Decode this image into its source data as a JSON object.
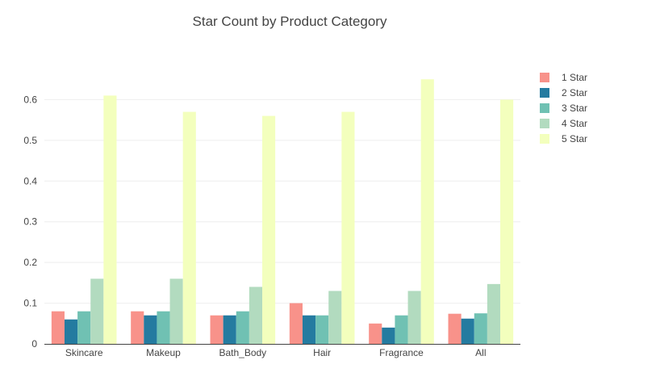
{
  "chart_data": {
    "type": "bar",
    "title": "Star Count by Product Category",
    "xlabel": "",
    "ylabel": "",
    "categories": [
      "Skincare",
      "Makeup",
      "Bath_Body",
      "Hair",
      "Fragrance",
      "All"
    ],
    "ylim": [
      0,
      0.7
    ],
    "yticks": [
      "0",
      "0.1",
      "0.2",
      "0.3",
      "0.4",
      "0.5",
      "0.6"
    ],
    "grid": true,
    "legend_position": "top-right",
    "series": [
      {
        "name": "1 Star",
        "color": "#f8928a",
        "values": [
          0.08,
          0.08,
          0.07,
          0.1,
          0.05,
          0.074
        ]
      },
      {
        "name": "2 Star",
        "color": "#247ba0",
        "values": [
          0.06,
          0.07,
          0.07,
          0.07,
          0.04,
          0.062
        ]
      },
      {
        "name": "3 Star",
        "color": "#70c1b3",
        "values": [
          0.08,
          0.08,
          0.08,
          0.07,
          0.07,
          0.075
        ]
      },
      {
        "name": "4 Star",
        "color": "#b2dbbf",
        "values": [
          0.16,
          0.16,
          0.14,
          0.13,
          0.13,
          0.147
        ]
      },
      {
        "name": "5 Star",
        "color": "#f3ffbd",
        "values": [
          0.61,
          0.57,
          0.56,
          0.57,
          0.65,
          0.6
        ]
      }
    ]
  }
}
